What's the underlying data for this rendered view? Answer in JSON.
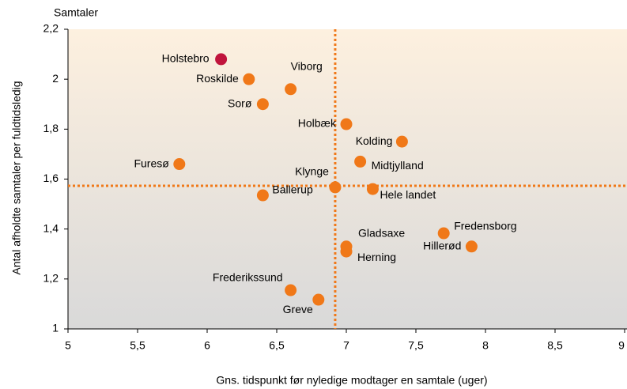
{
  "chart_data": {
    "type": "scatter",
    "y_unit_label": "Samtaler",
    "xlabel": "Gns. tidspunkt før nyledige modtager en samtale (uger)",
    "ylabel": "Antal afholdte samtaler per fuldtidsledig",
    "labels": [
      "Holstebro",
      "Roskilde",
      "Viborg",
      "Sorø",
      "Holbæk",
      "Kolding",
      "Furesø",
      "Midtjylland",
      "Klynge",
      "Hele landet",
      "Ballerup",
      "Fredensborg",
      "Hillerød",
      "Gladsaxe",
      "Herning",
      "Frederikssund",
      "Greve"
    ],
    "x": [
      6.1,
      6.3,
      6.6,
      6.4,
      7.0,
      7.4,
      5.8,
      7.1,
      6.92,
      7.19,
      6.4,
      7.7,
      7.9,
      7.0,
      7.0,
      6.6,
      6.8
    ],
    "y": [
      2.08,
      2.0,
      1.96,
      1.9,
      1.82,
      1.75,
      1.66,
      1.67,
      1.567,
      1.56,
      1.535,
      1.383,
      1.33,
      1.33,
      1.31,
      1.155,
      1.117
    ],
    "point_colors": [
      "#c0143c",
      "#f07818",
      "#f07818",
      "#f07818",
      "#f07818",
      "#f07818",
      "#f07818",
      "#f07818",
      "#f07818",
      "#f07818",
      "#f07818",
      "#f07818",
      "#f07818",
      "#f07818",
      "#f07818",
      "#f07818",
      "#f07818"
    ],
    "reference_lines": {
      "x": 6.92,
      "y": 1.573,
      "color": "#f07818"
    },
    "xlim": [
      5,
      9
    ],
    "xticks": [
      5,
      {
        "value": 5.5,
        "label": "5,5"
      },
      6,
      {
        "value": 6.5,
        "label": "6,5"
      },
      7,
      {
        "value": 7.5,
        "label": "7,5"
      },
      8,
      {
        "value": 8.5,
        "label": "8,5"
      },
      9
    ],
    "ylim": [
      1,
      2.2
    ],
    "yticks": [
      1,
      {
        "value": 1.2,
        "label": "1,2"
      },
      {
        "value": 1.4,
        "label": "1,4"
      },
      {
        "value": 1.6,
        "label": "1,6"
      },
      {
        "value": 1.8,
        "label": "1,8"
      },
      2,
      {
        "value": 2.2,
        "label": "2,2"
      }
    ]
  }
}
